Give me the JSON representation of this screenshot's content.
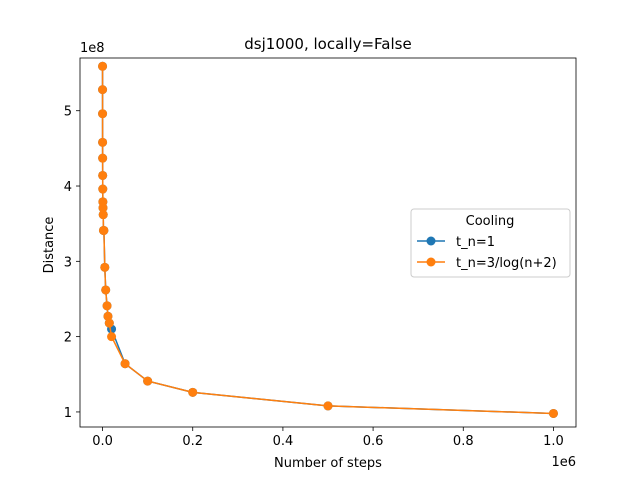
{
  "chart_data": {
    "type": "line",
    "title": "dsj1000, locally=False",
    "xlabel": "Number of steps",
    "ylabel": "Distance",
    "x_offset_text": "1e6",
    "y_offset_text": "1e8",
    "x_scale": 1000000,
    "y_scale": 100000000,
    "xlim": [
      -50000,
      1050000
    ],
    "ylim": [
      80000000,
      570000000
    ],
    "x_ticks": [
      0,
      200000,
      400000,
      600000,
      800000,
      1000000
    ],
    "x_tick_labels": [
      "0.0",
      "0.2",
      "0.4",
      "0.6",
      "0.8",
      "1.0"
    ],
    "y_ticks": [
      100000000,
      200000000,
      300000000,
      400000000,
      500000000
    ],
    "y_tick_labels": [
      "1",
      "2",
      "3",
      "4",
      "5"
    ],
    "grid": false,
    "legend": {
      "title": "Cooling",
      "placement": "center-right"
    },
    "series": [
      {
        "name": "t_n=1",
        "color": "#1f77b4",
        "x": [
          10,
          20,
          50,
          100,
          200,
          300,
          500,
          700,
          1000,
          1500,
          2000,
          3000,
          5000,
          7000,
          10000,
          12000,
          15000,
          20000,
          50000,
          100000,
          200000,
          500000,
          1000000
        ],
        "y": [
          559000000,
          528000000,
          496000000,
          458000000,
          437000000,
          414000000,
          396000000,
          379000000,
          371000000,
          362000000,
          341000000,
          341000000,
          292000000,
          262000000,
          241000000,
          227000000,
          218000000,
          210000000,
          164000000,
          141000000,
          126000000,
          108000000,
          98000000
        ]
      },
      {
        "name": "t_n=3/log(n+2)",
        "color": "#ff7f0e",
        "x": [
          10,
          20,
          50,
          100,
          200,
          300,
          500,
          700,
          1000,
          1500,
          2000,
          3000,
          5000,
          7000,
          10000,
          12000,
          15000,
          20000,
          50000,
          100000,
          200000,
          500000,
          1000000
        ],
        "y": [
          559000000,
          528000000,
          496000000,
          458000000,
          437000000,
          414000000,
          396000000,
          379000000,
          371000000,
          362000000,
          341000000,
          341000000,
          292000000,
          262000000,
          241000000,
          227000000,
          218000000,
          200000000,
          164000000,
          141000000,
          126000000,
          108000000,
          98000000
        ]
      }
    ]
  }
}
